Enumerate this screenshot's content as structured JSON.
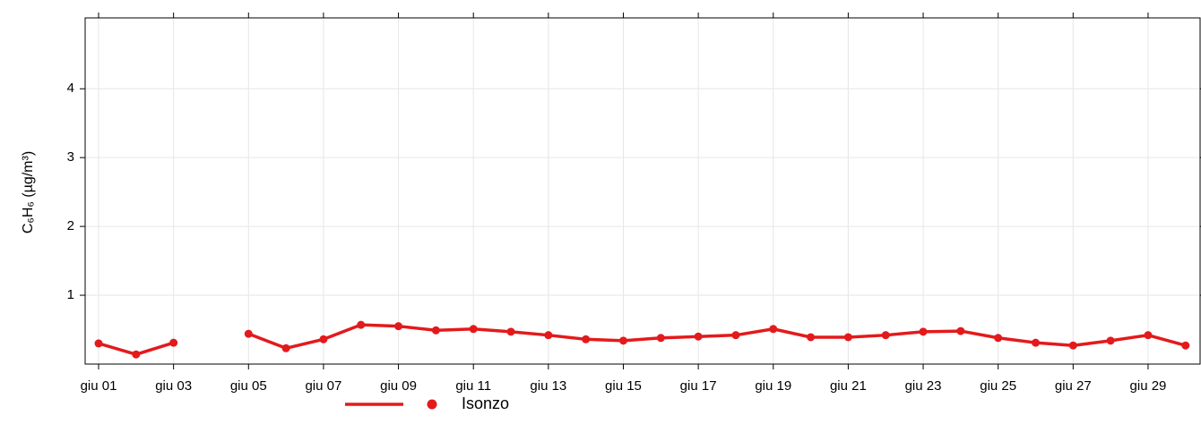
{
  "chart_data": {
    "type": "line",
    "y_label": "C₆H₆ (µg/m³)",
    "categories": [
      "giu 01",
      null,
      "giu 03",
      null,
      "giu 05",
      null,
      "giu 07",
      null,
      "giu 09",
      null,
      "giu 11",
      null,
      "giu 13",
      null,
      "giu 15",
      null,
      "giu 17",
      null,
      "giu 19",
      null,
      "giu 21",
      null,
      "giu 23",
      null,
      "giu 25",
      null,
      "giu 27",
      null,
      "giu 29",
      null
    ],
    "series": [
      {
        "name": "Isonzo",
        "color": "#e31a1c",
        "values": [
          0.3,
          0.14,
          0.31,
          null,
          0.44,
          0.23,
          0.36,
          0.57,
          0.55,
          0.49,
          0.51,
          0.47,
          0.42,
          0.36,
          0.34,
          0.38,
          0.4,
          0.42,
          0.51,
          0.39,
          0.39,
          0.42,
          0.47,
          0.48,
          0.38,
          0.31,
          0.27,
          0.34,
          0.42,
          0.27
        ]
      }
    ],
    "ylim": [
      0,
      5.03
    ],
    "yticks": [
      1,
      2,
      3,
      4
    ],
    "grid": true
  }
}
